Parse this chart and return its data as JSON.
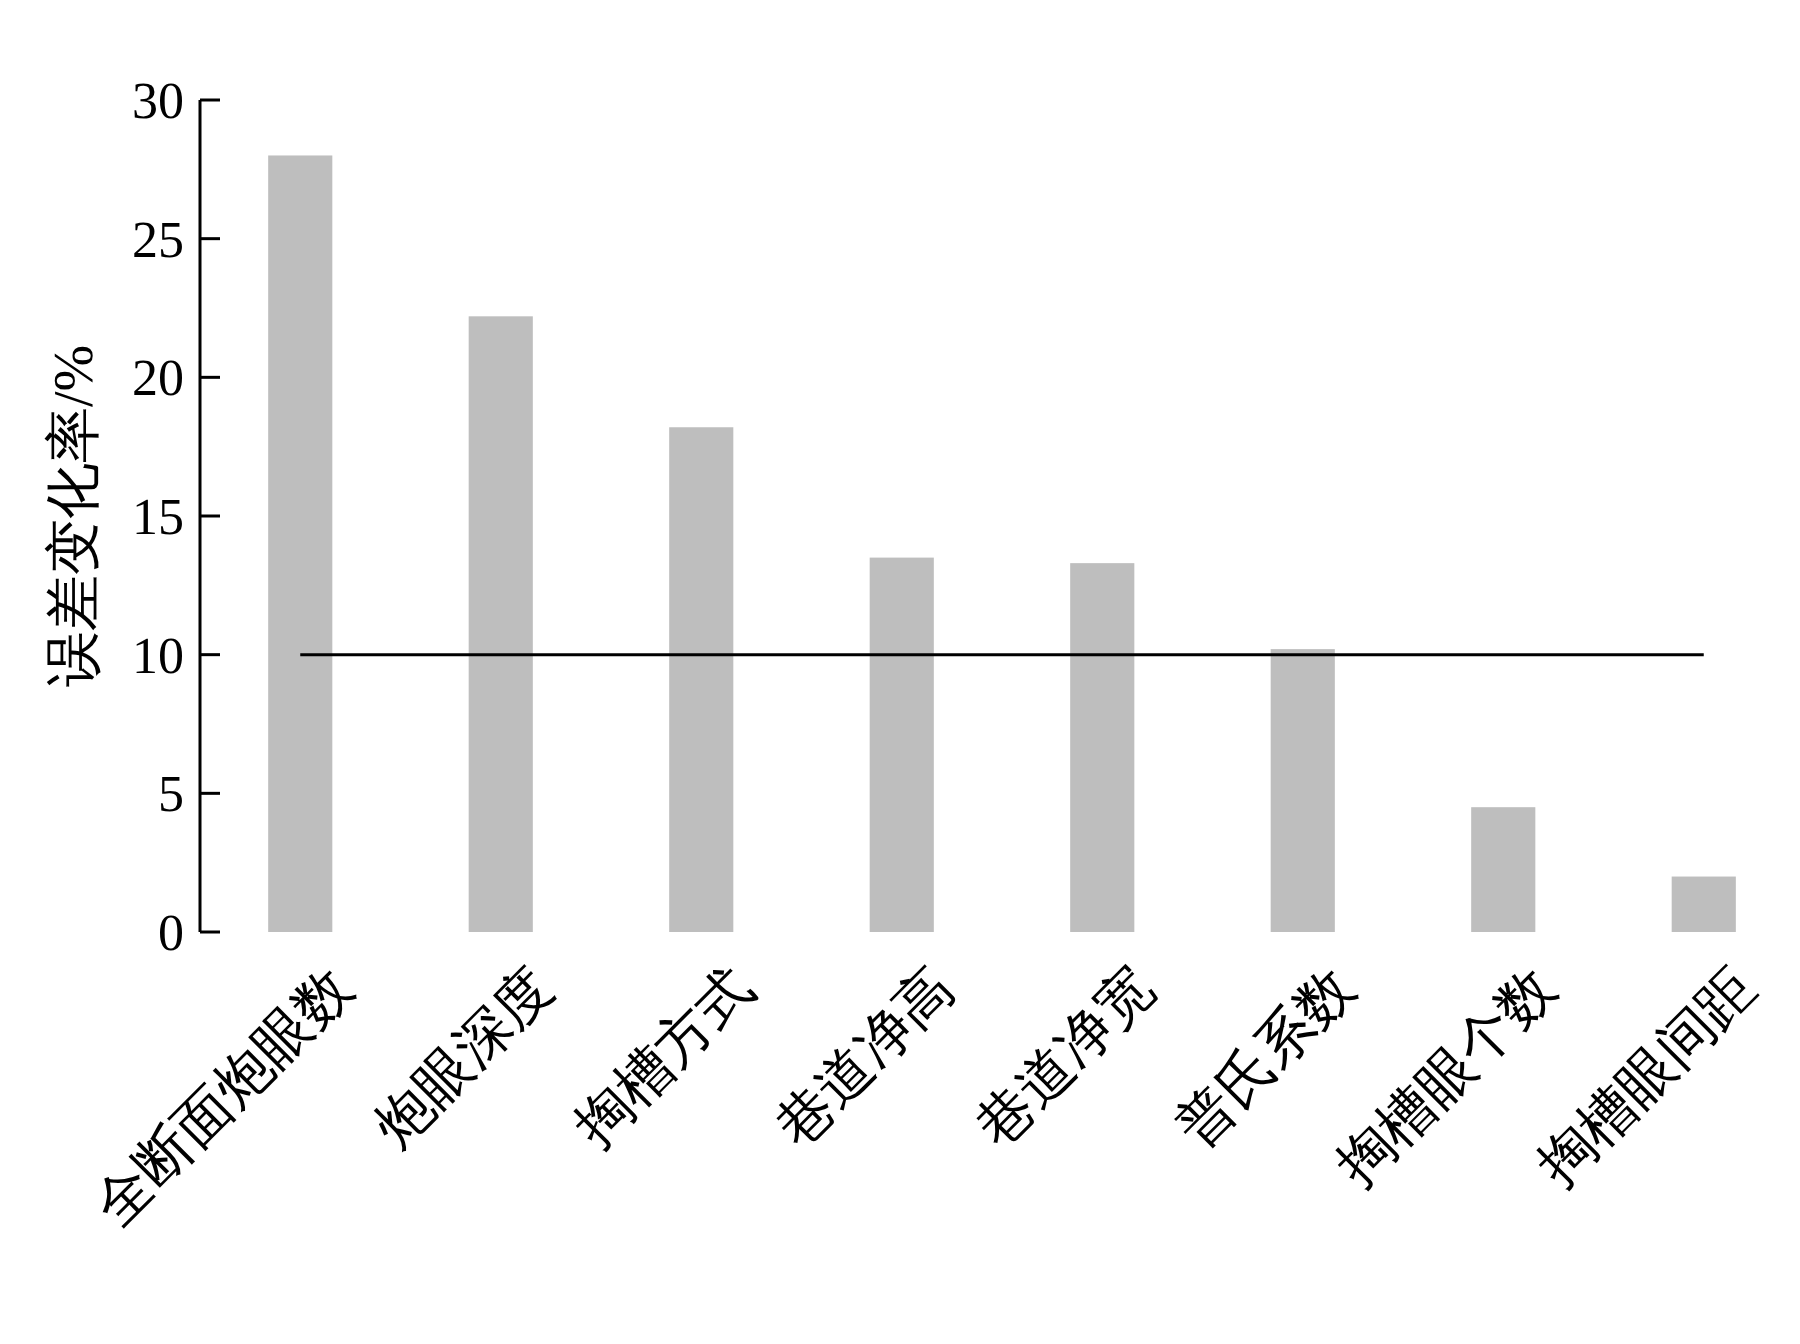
{
  "chart_data": {
    "type": "bar",
    "ylabel": "误差变化率/%",
    "categories": [
      "全断面炮眼数",
      "炮眼深度",
      "掏槽方式",
      "巷道净高",
      "巷道净宽",
      "普氏系数",
      "掏槽眼个数",
      "掏槽眼间距"
    ],
    "values": [
      28,
      22.2,
      18.2,
      13.5,
      13.3,
      10.2,
      4.5,
      2.0
    ],
    "color": "#bebebe",
    "ylim": [
      0,
      30
    ],
    "yticks": [
      0,
      5,
      10,
      15,
      20,
      25,
      30
    ],
    "ref_lines": [
      {
        "axis": "y",
        "value": 10,
        "color": "#000000"
      }
    ],
    "grid": false
  }
}
